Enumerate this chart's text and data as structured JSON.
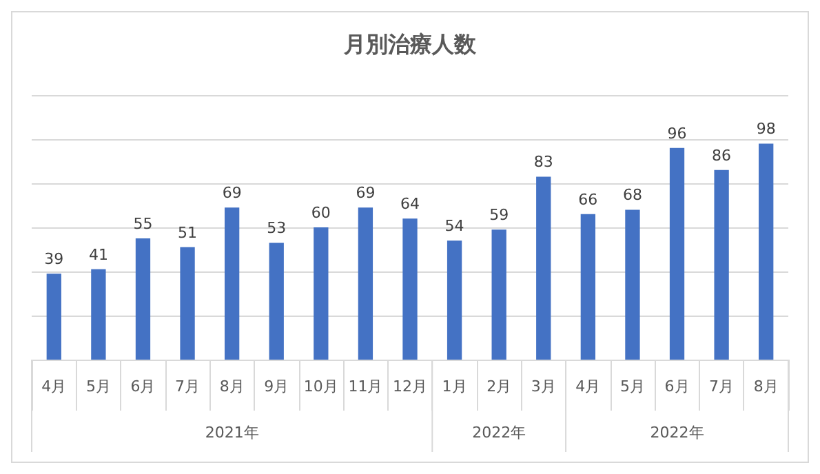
{
  "chart_data": {
    "type": "bar",
    "title": "月別治療人数",
    "categories": [
      "4月",
      "5月",
      "6月",
      "7月",
      "8月",
      "9月",
      "10月",
      "11月",
      "12月",
      "1月",
      "2月",
      "3月",
      "4月",
      "5月",
      "6月",
      "7月",
      "8月"
    ],
    "values": [
      39,
      41,
      55,
      51,
      69,
      53,
      60,
      69,
      64,
      54,
      59,
      83,
      66,
      68,
      96,
      86,
      98
    ],
    "color": "#4472c4",
    "data_labels": true,
    "ylim": [
      0,
      120
    ],
    "yticks": [
      0,
      20,
      40,
      60,
      80,
      100,
      120
    ],
    "grid": "y",
    "tick_labels": "x",
    "annotations": [
      "2021年",
      "2022年",
      "2022年"
    ]
  }
}
